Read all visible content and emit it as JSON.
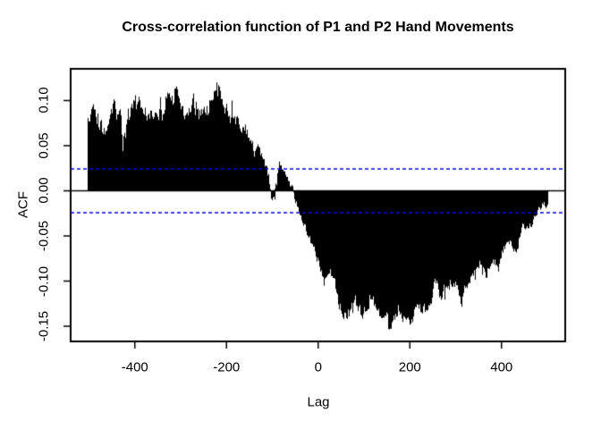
{
  "chart_data": {
    "type": "bar",
    "subtype": "cross-correlation-function",
    "title": "Cross-correlation function of P1 and P2 Hand Movements",
    "xlabel": "Lag",
    "ylabel": "ACF",
    "xlim": [
      -540,
      539
    ],
    "ylim": [
      -0.1668,
      0.1351
    ],
    "x_ticks": [
      -400,
      -200,
      0,
      200,
      400
    ],
    "x_tick_labels": [
      "-400",
      "-200",
      "0",
      "200",
      "400"
    ],
    "y_ticks": [
      0.1,
      0.05,
      0.0,
      -0.05,
      -0.1,
      -0.15
    ],
    "y_tick_labels": [
      "0.10",
      "0.05",
      "0.00",
      "-0.05",
      "-0.10",
      "-0.15"
    ],
    "grid": false,
    "legend": null,
    "lag_min": -502,
    "lag_max": 500,
    "max_acf": 0.127,
    "min_acf": -0.153,
    "zero_crossing_lag": -51,
    "conf_upper": 0.0243,
    "conf_lower": -0.0243,
    "colors": {
      "bars": "#000000",
      "conf_lines": "#0000EE",
      "axis": "#000000",
      "background": "#FFFFFF"
    },
    "conf_line_style": "dashed",
    "envelope": [
      [
        -502,
        0.071
      ],
      [
        -497,
        0.08
      ],
      [
        -492,
        0.088
      ],
      [
        -488,
        0.086
      ],
      [
        -483,
        0.072
      ],
      [
        -479,
        0.062
      ],
      [
        -474,
        0.083
      ],
      [
        -469,
        0.063
      ],
      [
        -462,
        0.058
      ],
      [
        -455,
        0.07
      ],
      [
        -449,
        0.094
      ],
      [
        -443,
        0.082
      ],
      [
        -437,
        0.085
      ],
      [
        -431,
        0.074
      ],
      [
        -427,
        0.056
      ],
      [
        -421,
        0.063
      ],
      [
        -415,
        0.082
      ],
      [
        -409,
        0.079
      ],
      [
        -404,
        0.106
      ],
      [
        -398,
        0.092
      ],
      [
        -391,
        0.094
      ],
      [
        -384,
        0.085
      ],
      [
        -376,
        0.083
      ],
      [
        -368,
        0.088
      ],
      [
        -358,
        0.074
      ],
      [
        -348,
        0.078
      ],
      [
        -338,
        0.09
      ],
      [
        -328,
        0.096
      ],
      [
        -318,
        0.102
      ],
      [
        -312,
        0.108
      ],
      [
        -308,
        0.112
      ],
      [
        -303,
        0.096
      ],
      [
        -299,
        0.091
      ],
      [
        -290,
        0.086
      ],
      [
        -281,
        0.082
      ],
      [
        -271,
        0.094
      ],
      [
        -261,
        0.086
      ],
      [
        -251,
        0.082
      ],
      [
        -242,
        0.088
      ],
      [
        -231,
        0.095
      ],
      [
        -223,
        0.108
      ],
      [
        -219,
        0.116
      ],
      [
        -214,
        0.095
      ],
      [
        -207,
        0.09
      ],
      [
        -199,
        0.086
      ],
      [
        -190,
        0.082
      ],
      [
        -181,
        0.079
      ],
      [
        -172,
        0.07
      ],
      [
        -163,
        0.062
      ],
      [
        -153,
        0.057
      ],
      [
        -144,
        0.05
      ],
      [
        -134,
        0.046
      ],
      [
        -125,
        0.04
      ],
      [
        -118,
        0.032
      ],
      [
        -111,
        0.019
      ],
      [
        -106,
        0.006
      ],
      [
        -101,
        -0.008
      ],
      [
        -97,
        -0.002
      ],
      [
        -92,
        0.006
      ],
      [
        -88,
        0.018
      ],
      [
        -84,
        0.03
      ],
      [
        -80,
        0.025
      ],
      [
        -75,
        0.016
      ],
      [
        -69,
        0.012
      ],
      [
        -62,
        0.007
      ],
      [
        -56,
        0
      ],
      [
        -51,
        -0.008
      ],
      [
        -45,
        -0.02
      ],
      [
        -38,
        -0.031
      ],
      [
        -30,
        -0.039
      ],
      [
        -22,
        -0.048
      ],
      [
        -14,
        -0.056
      ],
      [
        -7,
        -0.064
      ],
      [
        0,
        -0.075
      ],
      [
        6,
        -0.086
      ],
      [
        13,
        -0.099
      ],
      [
        19,
        -0.095
      ],
      [
        26,
        -0.087
      ],
      [
        33,
        -0.099
      ],
      [
        40,
        -0.111
      ],
      [
        47,
        -0.127
      ],
      [
        53,
        -0.14
      ],
      [
        59,
        -0.136
      ],
      [
        66,
        -0.134
      ],
      [
        74,
        -0.126
      ],
      [
        80,
        -0.122
      ],
      [
        87,
        -0.129
      ],
      [
        93,
        -0.134
      ],
      [
        100,
        -0.127
      ],
      [
        106,
        -0.125
      ],
      [
        113,
        -0.12
      ],
      [
        120,
        -0.119
      ],
      [
        127,
        -0.126
      ],
      [
        132,
        -0.132
      ],
      [
        138,
        -0.135
      ],
      [
        145,
        -0.139
      ],
      [
        152,
        -0.147
      ],
      [
        156,
        -0.148
      ],
      [
        161,
        -0.14
      ],
      [
        166,
        -0.136
      ],
      [
        172,
        -0.133
      ],
      [
        179,
        -0.133
      ],
      [
        185,
        -0.138
      ],
      [
        190,
        -0.142
      ],
      [
        197,
        -0.139
      ],
      [
        204,
        -0.139
      ],
      [
        211,
        -0.132
      ],
      [
        218,
        -0.126
      ],
      [
        224,
        -0.13
      ],
      [
        229,
        -0.133
      ],
      [
        236,
        -0.128
      ],
      [
        243,
        -0.122
      ],
      [
        250,
        -0.112
      ],
      [
        256,
        -0.095
      ],
      [
        262,
        -0.111
      ],
      [
        267,
        -0.12
      ],
      [
        274,
        -0.107
      ],
      [
        281,
        -0.102
      ],
      [
        289,
        -0.102
      ],
      [
        296,
        -0.105
      ],
      [
        302,
        -0.106
      ],
      [
        307,
        -0.116
      ],
      [
        311,
        -0.123
      ],
      [
        317,
        -0.112
      ],
      [
        322,
        -0.105
      ],
      [
        331,
        -0.097
      ],
      [
        340,
        -0.089
      ],
      [
        347,
        -0.082
      ],
      [
        353,
        -0.078
      ],
      [
        359,
        -0.087
      ],
      [
        364,
        -0.094
      ],
      [
        371,
        -0.087
      ],
      [
        379,
        -0.079
      ],
      [
        386,
        -0.085
      ],
      [
        392,
        -0.085
      ],
      [
        399,
        -0.072
      ],
      [
        405,
        -0.062
      ],
      [
        412,
        -0.057
      ],
      [
        419,
        -0.054
      ],
      [
        425,
        -0.059
      ],
      [
        432,
        -0.067
      ],
      [
        438,
        -0.052
      ],
      [
        444,
        -0.043
      ],
      [
        451,
        -0.039
      ],
      [
        458,
        -0.037
      ],
      [
        465,
        -0.037
      ],
      [
        471,
        -0.033
      ],
      [
        477,
        -0.022
      ],
      [
        481,
        -0.014
      ],
      [
        485,
        -0.023
      ],
      [
        489,
        -0.013
      ],
      [
        493,
        -0.009
      ],
      [
        497,
        -0.019
      ],
      [
        500,
        -0.02
      ]
    ],
    "noise_amp": [
      [
        -502,
        0.013
      ],
      [
        -140,
        0.012
      ],
      [
        -115,
        0.006
      ],
      [
        -95,
        0.007
      ],
      [
        -60,
        0.005
      ],
      [
        -30,
        0.005
      ],
      [
        0,
        0.006
      ],
      [
        30,
        0.008
      ],
      [
        100,
        0.009
      ],
      [
        250,
        0.009
      ],
      [
        420,
        0.008
      ],
      [
        500,
        0.005
      ]
    ],
    "noise_seed": 12345
  }
}
